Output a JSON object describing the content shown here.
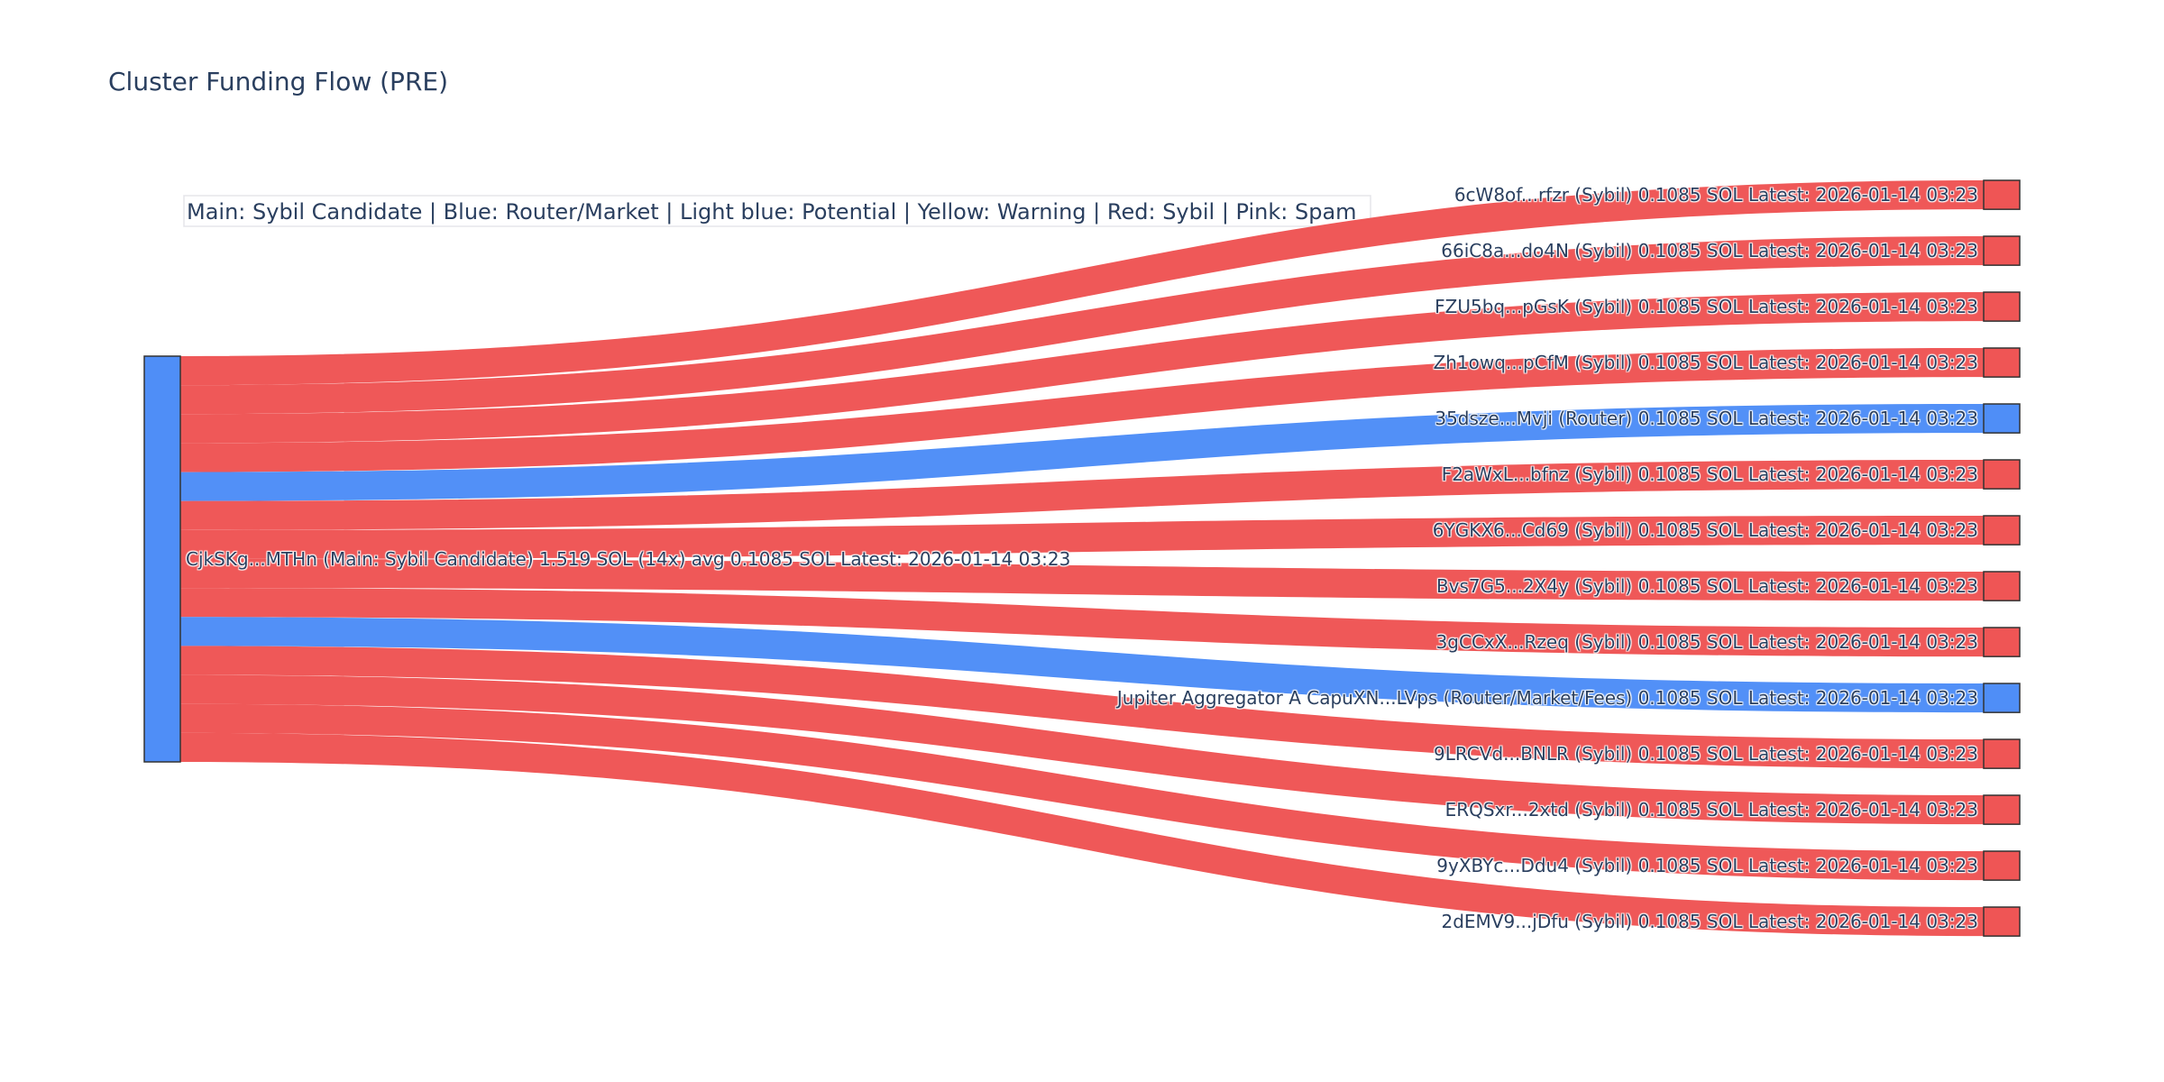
{
  "title": "Cluster Funding Flow (PRE)",
  "annotation": "Main: Sybil Candidate  |  Blue: Router/Market | Light blue: Potential | Yellow: Warning | Red: Sybil | Pink: Spam",
  "colors": {
    "sybil": "#ef5555",
    "router": "#4f8ef7",
    "node_border": "#333333"
  },
  "chart_data": {
    "type": "sankey",
    "title": "Cluster Funding Flow (PRE)",
    "source": {
      "label": "CjkSKg...MTHn (Main: Sybil Candidate) 1.519 SOL (14x) avg 0.1085 SOL Latest: 2026-01-14 03:23",
      "category": "router",
      "value": 1.519
    },
    "targets": [
      {
        "label": "6cW8of...rfzr (Sybil) 0.1085 SOL Latest: 2026-01-14 03:23",
        "category": "sybil",
        "value": 0.1085
      },
      {
        "label": "66iC8a...do4N (Sybil) 0.1085 SOL Latest: 2026-01-14 03:23",
        "category": "sybil",
        "value": 0.1085
      },
      {
        "label": "FZU5bq...pGsK (Sybil) 0.1085 SOL Latest: 2026-01-14 03:23",
        "category": "sybil",
        "value": 0.1085
      },
      {
        "label": "Zh1owq...pCfM (Sybil) 0.1085 SOL Latest: 2026-01-14 03:23",
        "category": "sybil",
        "value": 0.1085
      },
      {
        "label": "35dsze...Mvji (Router) 0.1085 SOL Latest: 2026-01-14 03:23",
        "category": "router",
        "value": 0.1085
      },
      {
        "label": "F2aWxL...bfnz (Sybil) 0.1085 SOL Latest: 2026-01-14 03:23",
        "category": "sybil",
        "value": 0.1085
      },
      {
        "label": "6YGKX6...Cd69 (Sybil) 0.1085 SOL Latest: 2026-01-14 03:23",
        "category": "sybil",
        "value": 0.1085
      },
      {
        "label": "Bvs7G5...2X4y (Sybil) 0.1085 SOL Latest: 2026-01-14 03:23",
        "category": "sybil",
        "value": 0.1085
      },
      {
        "label": "3gCCxX...Rzeq (Sybil) 0.1085 SOL Latest: 2026-01-14 03:23",
        "category": "sybil",
        "value": 0.1085
      },
      {
        "label": "Jupiter Aggregator A CapuXN...LVps (Router/Market/Fees) 0.1085 SOL Latest: 2026-01-14 03:23",
        "category": "router",
        "value": 0.1085
      },
      {
        "label": "9LRCVd...BNLR (Sybil) 0.1085 SOL Latest: 2026-01-14 03:23",
        "category": "sybil",
        "value": 0.1085
      },
      {
        "label": "ERQSxr...2xtd (Sybil) 0.1085 SOL Latest: 2026-01-14 03:23",
        "category": "sybil",
        "value": 0.1085
      },
      {
        "label": "9yXBYc...Ddu4 (Sybil) 0.1085 SOL Latest: 2026-01-14 03:23",
        "category": "sybil",
        "value": 0.1085
      },
      {
        "label": "2dEMV9...jDfu (Sybil) 0.1085 SOL Latest: 2026-01-14 03:23",
        "category": "sybil",
        "value": 0.1085
      }
    ]
  }
}
